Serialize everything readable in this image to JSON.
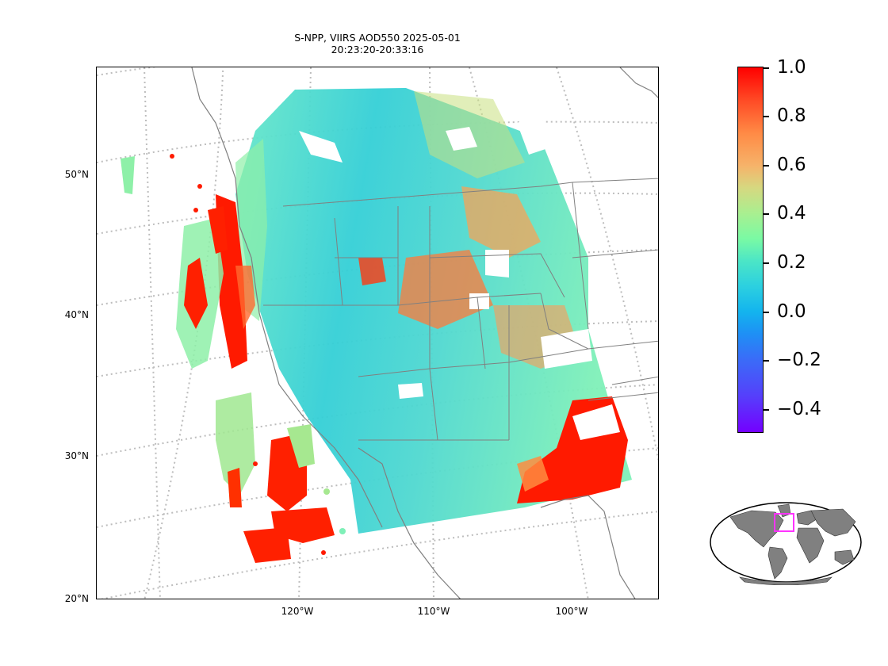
{
  "title": {
    "line1": "S-NPP, VIIRS AOD550 2025-05-01",
    "line2": "20:23:20-20:33:16"
  },
  "map": {
    "projection": "Lambert Conformal",
    "extent": {
      "lon_min": -135,
      "lon_max": -90,
      "lat_min": 20,
      "lat_max": 55
    },
    "gridlines": "dotted",
    "lat_labels": [
      "20°N",
      "30°N",
      "40°N",
      "50°N"
    ],
    "lon_labels": [
      "120°W",
      "110°W",
      "100°W"
    ],
    "coastline_color": "#808080",
    "state_border_color": "#808080"
  },
  "colorbar": {
    "vmin": -0.5,
    "vmax": 1.0,
    "colormap": "rainbow",
    "ticks": [
      "1.0",
      "0.8",
      "0.6",
      "0.4",
      "0.2",
      "0.0",
      "−0.2",
      "−0.4"
    ]
  },
  "inset": {
    "type": "world locator map",
    "land_color": "#808080",
    "box_color": "#ff33ff"
  }
}
